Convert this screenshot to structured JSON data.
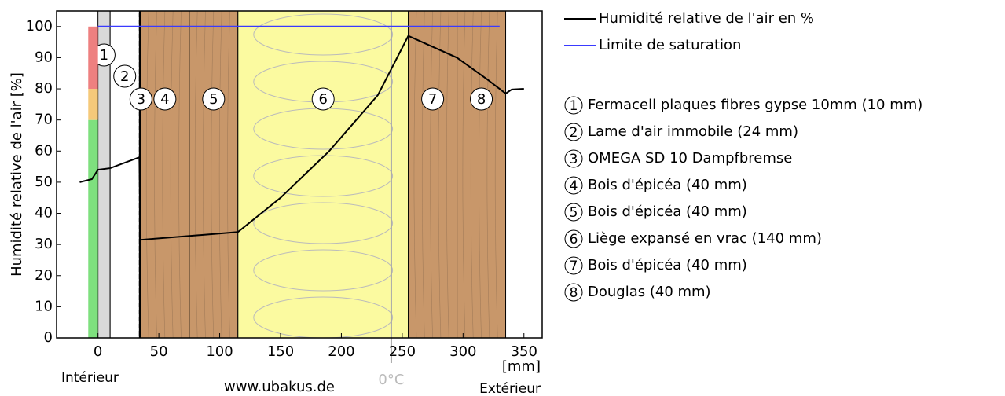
{
  "chart_data": {
    "type": "line",
    "y_label": "Humidité relative de l'air [%]",
    "x_label": "[mm]",
    "xlim": [
      -34,
      365
    ],
    "ylim": [
      0,
      105
    ],
    "xticks": [
      0,
      50,
      100,
      150,
      200,
      250,
      300,
      350
    ],
    "yticks": [
      0,
      10,
      20,
      30,
      40,
      50,
      60,
      70,
      80,
      90,
      100
    ],
    "inside_label": "Intérieur",
    "outside_label": "Extérieur",
    "watermark": "www.ubakus.de",
    "zero_celsius": {
      "label": "0°C",
      "x": 241
    },
    "comfort_bands": [
      {
        "from": 0,
        "to": 70,
        "color": "#7ee07e"
      },
      {
        "from": 70,
        "to": 80,
        "color": "#f5c97a"
      },
      {
        "from": 80,
        "to": 100,
        "color": "#ee8080"
      }
    ],
    "layers": [
      {
        "number": "1",
        "name": "Fermacell plaques fibres gypse  10mm (10 mm)",
        "from": 0,
        "to": 10,
        "color": "#d9d9d9"
      },
      {
        "number": "2",
        "name": "Lame d'air immobile (24 mm)",
        "from": 10,
        "to": 34,
        "color": "#ffffff"
      },
      {
        "number": "3",
        "name": "OMEGA SD 10 Dampfbremse",
        "from": 34,
        "to": 35,
        "color": "#000000"
      },
      {
        "number": "4",
        "name": "Bois d'épicéa (40 mm)",
        "from": 35,
        "to": 75,
        "color": "#c8976a"
      },
      {
        "number": "5",
        "name": "Bois d'épicéa (40 mm)",
        "from": 75,
        "to": 115,
        "color": "#c8976a"
      },
      {
        "number": "6",
        "name": "Liège expansé en vrac (140 mm)",
        "from": 115,
        "to": 255,
        "color": "#fbfaa0"
      },
      {
        "number": "7",
        "name": "Bois d'épicéa (40 mm)",
        "from": 255,
        "to": 295,
        "color": "#c8976a"
      },
      {
        "number": "8",
        "name": "Douglas (40 mm)",
        "from": 295,
        "to": 335,
        "color": "#c8976a"
      }
    ],
    "series": [
      {
        "name": "Humidité relative de l'air en %",
        "color": "#000000",
        "x": [
          -15,
          -5,
          0,
          10,
          34,
          35,
          115,
          150,
          190,
          230,
          255,
          295,
          320,
          335,
          340,
          350
        ],
        "values": [
          50,
          51,
          54,
          54.5,
          58,
          31.5,
          34,
          45,
          60,
          78,
          97,
          90,
          83,
          78.5,
          79.8,
          80
        ]
      },
      {
        "name": "Limite de saturation",
        "color": "#3a3aff",
        "x": [
          0,
          330
        ],
        "values": [
          100,
          100
        ]
      }
    ]
  }
}
